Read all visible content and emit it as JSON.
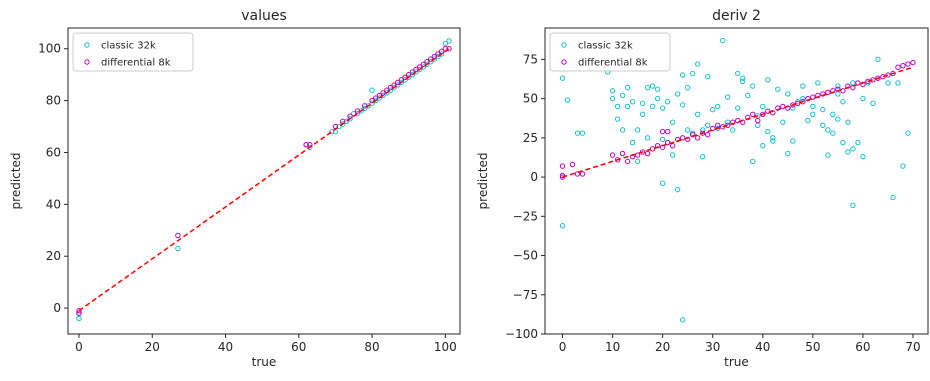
{
  "chart_data": [
    {
      "type": "scatter",
      "title": "values",
      "xlabel": "true",
      "ylabel": "predicted",
      "xlim": [
        -3,
        104
      ],
      "ylim": [
        -10,
        108
      ],
      "xticks": [
        0,
        20,
        40,
        60,
        80,
        100
      ],
      "yticks": [
        0,
        20,
        40,
        60,
        80,
        100
      ],
      "legend_position": "upper-left",
      "reference_line": {
        "x": [
          0,
          101
        ],
        "y": [
          -1,
          100
        ],
        "color": "#ff0000",
        "style": "dashed"
      },
      "series": [
        {
          "name": "classic 32k",
          "color": "#17becf",
          "points": [
            [
              0,
              -4
            ],
            [
              0,
              -2
            ],
            [
              27,
              23
            ],
            [
              62,
              63
            ],
            [
              63,
              62
            ],
            [
              69,
              68
            ],
            [
              70,
              68
            ],
            [
              71,
              70
            ],
            [
              72,
              71
            ],
            [
              73,
              72
            ],
            [
              74,
              73
            ],
            [
              75,
              75
            ],
            [
              76,
              75
            ],
            [
              77,
              76
            ],
            [
              78,
              77
            ],
            [
              79,
              78
            ],
            [
              80,
              79
            ],
            [
              80,
              84
            ],
            [
              81,
              80
            ],
            [
              82,
              81
            ],
            [
              83,
              82
            ],
            [
              84,
              83
            ],
            [
              85,
              84
            ],
            [
              86,
              85
            ],
            [
              87,
              86
            ],
            [
              88,
              87
            ],
            [
              89,
              88
            ],
            [
              90,
              89
            ],
            [
              91,
              90
            ],
            [
              92,
              91
            ],
            [
              93,
              92
            ],
            [
              94,
              93
            ],
            [
              95,
              94
            ],
            [
              96,
              95
            ],
            [
              97,
              96
            ],
            [
              98,
              97
            ],
            [
              99,
              98
            ],
            [
              100,
              102
            ],
            [
              101,
              103
            ]
          ]
        },
        {
          "name": "differential 8k",
          "color": "#bf00bf",
          "points": [
            [
              0,
              -1
            ],
            [
              0,
              -2
            ],
            [
              27,
              28
            ],
            [
              62,
              63
            ],
            [
              63,
              63
            ],
            [
              70,
              70
            ],
            [
              72,
              72
            ],
            [
              74,
              74
            ],
            [
              76,
              76
            ],
            [
              78,
              78
            ],
            [
              80,
              80
            ],
            [
              81,
              81
            ],
            [
              82,
              82
            ],
            [
              83,
              83
            ],
            [
              84,
              84
            ],
            [
              85,
              85
            ],
            [
              86,
              86
            ],
            [
              87,
              87
            ],
            [
              88,
              88
            ],
            [
              89,
              89
            ],
            [
              90,
              90
            ],
            [
              91,
              91
            ],
            [
              92,
              92
            ],
            [
              93,
              93
            ],
            [
              94,
              94
            ],
            [
              95,
              95
            ],
            [
              96,
              96
            ],
            [
              97,
              97
            ],
            [
              98,
              98
            ],
            [
              99,
              99
            ],
            [
              100,
              100
            ],
            [
              101,
              100
            ]
          ]
        }
      ]
    },
    {
      "type": "scatter",
      "title": "deriv 2",
      "xlabel": "true",
      "ylabel": "predicted",
      "xlim": [
        -3.5,
        73
      ],
      "ylim": [
        -100,
        95
      ],
      "xticks": [
        0,
        10,
        20,
        30,
        40,
        50,
        60,
        70
      ],
      "yticks": [
        -100,
        -75,
        -50,
        -25,
        0,
        25,
        50,
        75
      ],
      "ytick_labels": [
        "−100",
        "−75",
        "−50",
        "−25",
        "0",
        "25",
        "50",
        "75"
      ],
      "legend_position": "upper-left",
      "reference_line": {
        "x": [
          0,
          70
        ],
        "y": [
          0,
          70
        ],
        "color": "#ff0000",
        "style": "dashed"
      },
      "series": [
        {
          "name": "classic 32k",
          "color": "#17becf",
          "points": [
            [
              0,
              -31
            ],
            [
              0,
              63
            ],
            [
              1,
              49
            ],
            [
              3,
              28
            ],
            [
              4,
              28
            ],
            [
              9,
              67
            ],
            [
              10,
              50
            ],
            [
              10,
              55
            ],
            [
              11,
              37
            ],
            [
              11,
              45
            ],
            [
              12,
              52
            ],
            [
              12,
              30
            ],
            [
              13,
              45
            ],
            [
              13,
              57
            ],
            [
              14,
              48
            ],
            [
              14,
              22
            ],
            [
              15,
              30
            ],
            [
              15,
              10
            ],
            [
              16,
              47
            ],
            [
              16,
              40
            ],
            [
              17,
              57
            ],
            [
              17,
              25
            ],
            [
              18,
              58
            ],
            [
              18,
              45
            ],
            [
              19,
              50
            ],
            [
              19,
              56
            ],
            [
              20,
              44
            ],
            [
              20,
              24
            ],
            [
              20,
              -4
            ],
            [
              21,
              48
            ],
            [
              21,
              22
            ],
            [
              22,
              35
            ],
            [
              22,
              14
            ],
            [
              23,
              -8
            ],
            [
              23,
              53
            ],
            [
              24,
              -91
            ],
            [
              24,
              46
            ],
            [
              24,
              65
            ],
            [
              25,
              30
            ],
            [
              25,
              57
            ],
            [
              26,
              66
            ],
            [
              26,
              28
            ],
            [
              27,
              72
            ],
            [
              27,
              40
            ],
            [
              28,
              30
            ],
            [
              28,
              13
            ],
            [
              29,
              64
            ],
            [
              29,
              33
            ],
            [
              30,
              43
            ],
            [
              31,
              45
            ],
            [
              31,
              31
            ],
            [
              32,
              87
            ],
            [
              33,
              51
            ],
            [
              33,
              35
            ],
            [
              34,
              30
            ],
            [
              35,
              66
            ],
            [
              35,
              44
            ],
            [
              36,
              61
            ],
            [
              36,
              63
            ],
            [
              37,
              52
            ],
            [
              38,
              58
            ],
            [
              38,
              10
            ],
            [
              39,
              33
            ],
            [
              39,
              39
            ],
            [
              40,
              45
            ],
            [
              40,
              20
            ],
            [
              41,
              62
            ],
            [
              41,
              29
            ],
            [
              42,
              23
            ],
            [
              42,
              25
            ],
            [
              43,
              56
            ],
            [
              44,
              35
            ],
            [
              45,
              53
            ],
            [
              45,
              15
            ],
            [
              46,
              44
            ],
            [
              46,
              23
            ],
            [
              47,
              48
            ],
            [
              48,
              50
            ],
            [
              48,
              58
            ],
            [
              49,
              36
            ],
            [
              50,
              45
            ],
            [
              50,
              40
            ],
            [
              51,
              60
            ],
            [
              52,
              43
            ],
            [
              52,
              33
            ],
            [
              53,
              14
            ],
            [
              53,
              30
            ],
            [
              54,
              28
            ],
            [
              54,
              40
            ],
            [
              55,
              58
            ],
            [
              55,
              53
            ],
            [
              55,
              37
            ],
            [
              56,
              48
            ],
            [
              56,
              22
            ],
            [
              57,
              16
            ],
            [
              57,
              35
            ],
            [
              58,
              -18
            ],
            [
              58,
              18
            ],
            [
              58,
              60
            ],
            [
              59,
              22
            ],
            [
              60,
              13
            ],
            [
              60,
              50
            ],
            [
              61,
              60
            ],
            [
              62,
              47
            ],
            [
              63,
              75
            ],
            [
              65,
              60
            ],
            [
              66,
              -13
            ],
            [
              67,
              60
            ],
            [
              68,
              7
            ],
            [
              69,
              28
            ]
          ]
        },
        {
          "name": "differential 8k",
          "color": "#bf00bf",
          "points": [
            [
              0,
              0
            ],
            [
              0,
              1
            ],
            [
              0,
              7
            ],
            [
              2,
              8
            ],
            [
              3,
              2
            ],
            [
              4,
              2
            ],
            [
              10,
              14
            ],
            [
              11,
              11
            ],
            [
              12,
              15
            ],
            [
              13,
              10
            ],
            [
              14,
              13
            ],
            [
              15,
              14
            ],
            [
              16,
              16
            ],
            [
              17,
              15
            ],
            [
              18,
              18
            ],
            [
              19,
              20
            ],
            [
              20,
              29
            ],
            [
              20,
              19
            ],
            [
              21,
              22
            ],
            [
              21,
              29
            ],
            [
              22,
              20
            ],
            [
              23,
              24
            ],
            [
              24,
              25
            ],
            [
              25,
              24
            ],
            [
              26,
              27
            ],
            [
              27,
              25
            ],
            [
              28,
              28
            ],
            [
              29,
              27
            ],
            [
              30,
              31
            ],
            [
              31,
              33
            ],
            [
              32,
              32
            ],
            [
              33,
              33
            ],
            [
              34,
              35
            ],
            [
              35,
              36
            ],
            [
              36,
              35
            ],
            [
              37,
              38
            ],
            [
              38,
              40
            ],
            [
              39,
              36
            ],
            [
              40,
              40
            ],
            [
              41,
              42
            ],
            [
              42,
              41
            ],
            [
              43,
              44
            ],
            [
              44,
              45
            ],
            [
              45,
              44
            ],
            [
              46,
              46
            ],
            [
              47,
              47
            ],
            [
              48,
              48
            ],
            [
              49,
              50
            ],
            [
              50,
              51
            ],
            [
              51,
              52
            ],
            [
              52,
              53
            ],
            [
              53,
              54
            ],
            [
              54,
              55
            ],
            [
              55,
              56
            ],
            [
              56,
              55
            ],
            [
              57,
              58
            ],
            [
              58,
              57
            ],
            [
              59,
              60
            ],
            [
              60,
              59
            ],
            [
              61,
              61
            ],
            [
              62,
              62
            ],
            [
              63,
              63
            ],
            [
              64,
              64
            ],
            [
              65,
              65
            ],
            [
              66,
              66
            ],
            [
              67,
              70
            ],
            [
              68,
              71
            ],
            [
              69,
              72
            ],
            [
              70,
              73
            ]
          ]
        }
      ]
    }
  ]
}
